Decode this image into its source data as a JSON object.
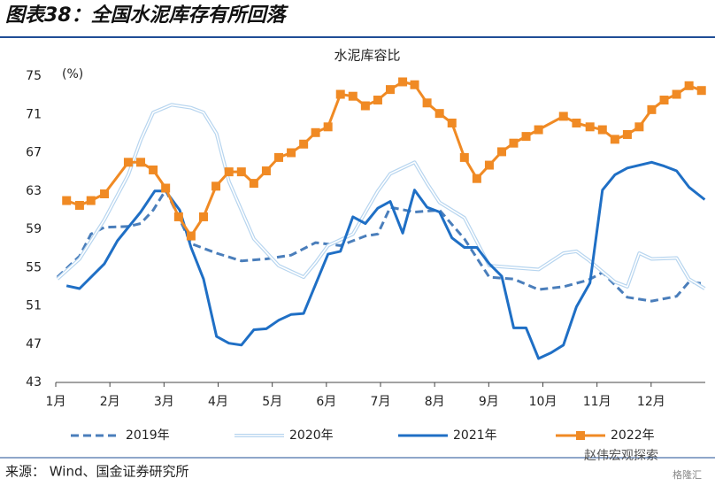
{
  "figure_title": "图表38：全国水泥库存有所回落",
  "source": "来源： Wind、国金证券研究所",
  "watermark": "赵伟宏观探索",
  "watermark_badge": "格隆汇",
  "chart_data": {
    "type": "line",
    "title": "水泥库容比",
    "y_unit": "(%)",
    "xlim": [
      0,
      12
    ],
    "xticks": [
      {
        "value": 0,
        "label": "1月"
      },
      {
        "value": 1,
        "label": "2月"
      },
      {
        "value": 2,
        "label": "3月"
      },
      {
        "value": 3,
        "label": "4月"
      },
      {
        "value": 4,
        "label": "5月"
      },
      {
        "value": 5,
        "label": "6月"
      },
      {
        "value": 6,
        "label": "7月"
      },
      {
        "value": 7,
        "label": "8月"
      },
      {
        "value": 8,
        "label": "9月"
      },
      {
        "value": 9,
        "label": "10月"
      },
      {
        "value": 10,
        "label": "11月"
      },
      {
        "value": 11,
        "label": "12月"
      }
    ],
    "ylim": [
      43,
      75
    ],
    "yticks": [
      43,
      47,
      51,
      55,
      59,
      63,
      67,
      71,
      75
    ],
    "grid": false,
    "series": [
      {
        "name": "2019年",
        "color": "#4a7ebb",
        "style": "dashed",
        "x": [
          0.03,
          0.44,
          0.65,
          0.9,
          1.34,
          1.57,
          1.8,
          2.03,
          2.27,
          2.5,
          2.97,
          3.43,
          3.89,
          4.35,
          4.8,
          5.26,
          5.72,
          5.95,
          6.18,
          6.63,
          7.09,
          7.55,
          8.01,
          8.46,
          8.92,
          9.38,
          9.84,
          10.1,
          10.56,
          11.01,
          11.47,
          11.7,
          11.99
        ],
        "values": [
          54.0,
          56.2,
          58.5,
          59.2,
          59.3,
          59.6,
          61.0,
          63.1,
          60.3,
          57.5,
          56.5,
          55.7,
          55.9,
          56.3,
          57.6,
          57.3,
          58.3,
          58.5,
          61.3,
          60.8,
          61.0,
          58.0,
          54.0,
          53.8,
          52.7,
          53.0,
          53.7,
          54.5,
          51.9,
          51.5,
          52.0,
          53.5,
          53.3
        ]
      },
      {
        "name": "2020年",
        "color": "#b7d5ef",
        "style": "double",
        "x": [
          0.03,
          0.44,
          0.9,
          1.34,
          1.57,
          1.8,
          2.14,
          2.5,
          2.73,
          2.97,
          3.2,
          3.43,
          3.66,
          4.12,
          4.58,
          4.8,
          5.03,
          5.49,
          5.95,
          6.18,
          6.63,
          6.86,
          7.09,
          7.55,
          8.01,
          8.46,
          8.92,
          9.38,
          9.62,
          9.84,
          10.33,
          10.56,
          10.78,
          11.01,
          11.47,
          11.7,
          11.99
        ],
        "values": [
          53.8,
          55.9,
          60.0,
          64.7,
          68.3,
          71.2,
          72.0,
          71.7,
          71.2,
          69.0,
          64.0,
          61.0,
          58.0,
          55.2,
          54.0,
          55.5,
          57.3,
          58.5,
          63.0,
          64.8,
          66.0,
          63.8,
          61.8,
          60.2,
          55.2,
          55.0,
          54.8,
          56.5,
          56.7,
          55.8,
          53.5,
          53.0,
          56.5,
          55.9,
          56.0,
          53.8,
          52.8
        ]
      },
      {
        "name": "2021年",
        "color": "#1f6fc5",
        "style": "solid",
        "x": [
          0.2,
          0.44,
          0.9,
          1.14,
          1.57,
          1.83,
          2.03,
          2.29,
          2.5,
          2.73,
          2.97,
          3.2,
          3.43,
          3.66,
          3.89,
          4.12,
          4.35,
          4.58,
          5.03,
          5.26,
          5.49,
          5.72,
          5.95,
          6.18,
          6.41,
          6.63,
          6.86,
          7.09,
          7.32,
          7.55,
          7.78,
          8.01,
          8.24,
          8.46,
          8.69,
          8.92,
          9.15,
          9.38,
          9.62,
          9.87,
          10.1,
          10.33,
          10.56,
          11.01,
          11.24,
          11.47,
          11.7,
          11.99
        ],
        "values": [
          53.1,
          52.8,
          55.4,
          57.8,
          60.8,
          63.0,
          63.0,
          61.0,
          57.1,
          53.8,
          47.8,
          47.1,
          46.9,
          48.5,
          48.6,
          49.5,
          50.1,
          50.2,
          56.4,
          56.7,
          60.3,
          59.6,
          61.2,
          61.9,
          58.6,
          63.1,
          61.3,
          60.8,
          58.1,
          57.1,
          57.1,
          55.4,
          54.1,
          48.7,
          48.7,
          45.5,
          46.1,
          46.9,
          50.9,
          53.4,
          63.1,
          64.7,
          65.4,
          66.0,
          65.6,
          65.1,
          63.4,
          62.1
        ]
      },
      {
        "name": "2022年",
        "color": "#f08a24",
        "style": "square-markers",
        "x": [
          0.2,
          0.44,
          0.65,
          0.9,
          1.34,
          1.57,
          1.8,
          2.03,
          2.27,
          2.5,
          2.73,
          2.96,
          3.2,
          3.43,
          3.66,
          3.89,
          4.12,
          4.35,
          4.58,
          4.8,
          5.03,
          5.26,
          5.49,
          5.72,
          5.95,
          6.18,
          6.41,
          6.63,
          6.86,
          7.09,
          7.32,
          7.55,
          7.78,
          8.01,
          8.24,
          8.46,
          8.69,
          8.92,
          9.38,
          9.62,
          9.87,
          10.1,
          10.33,
          10.56,
          10.78,
          11.01,
          11.24,
          11.47,
          11.7,
          11.93
        ],
        "values": [
          62.0,
          61.5,
          62.0,
          62.7,
          66.0,
          66.0,
          65.2,
          63.3,
          60.3,
          58.3,
          60.3,
          63.5,
          65.0,
          65.0,
          63.8,
          65.1,
          66.5,
          67.0,
          67.9,
          69.1,
          69.7,
          73.1,
          72.9,
          71.9,
          72.5,
          73.6,
          74.4,
          74.1,
          72.2,
          71.1,
          70.1,
          66.5,
          64.3,
          65.7,
          67.1,
          68.0,
          68.7,
          69.4,
          70.8,
          70.1,
          69.7,
          69.4,
          68.4,
          68.9,
          69.7,
          71.5,
          72.5,
          73.1,
          74.0,
          73.5
        ]
      }
    ]
  }
}
